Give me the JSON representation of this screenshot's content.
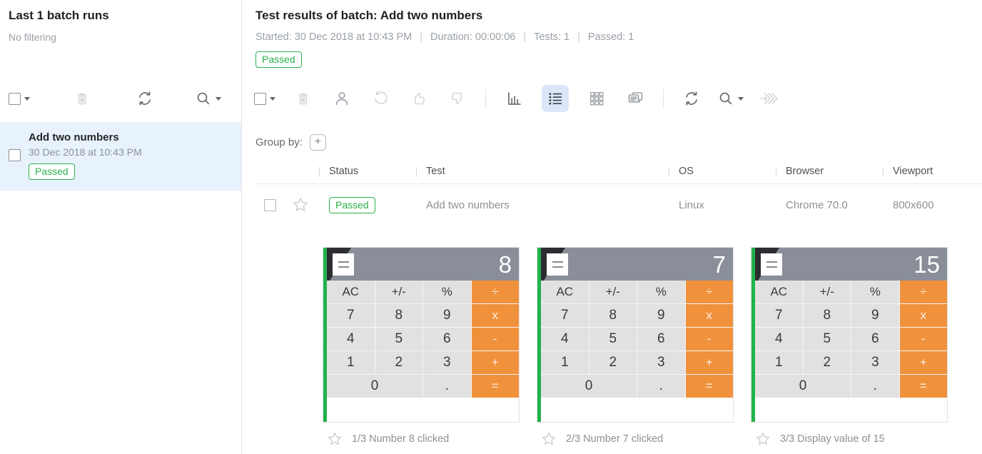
{
  "colors": {
    "passed_green": "#2bb24c",
    "selected_tool_bg": "#dbe7f8",
    "sidebar_item_bg": "#e8f2fc",
    "calc_header_gray": "#8a8e99",
    "calc_orange": "#f0913c",
    "calc_key_gray": "#e1e1e1",
    "thumbnail_green_strip": "#22b24c"
  },
  "sidebar": {
    "title": "Last 1 batch runs",
    "subtitle": "No filtering",
    "toolbar_icons": [
      "select-checkbox",
      "delete",
      "refresh",
      "search"
    ],
    "item": {
      "title": "Add two numbers",
      "date": "30 Dec 2018 at 10:43 PM",
      "status": "Passed"
    }
  },
  "header": {
    "title": "Test results of batch: Add two numbers",
    "meta": [
      "Started: 30 Dec 2018 at 10:43 PM",
      "Duration: 00:00:06",
      "Tests: 1",
      "Passed: 1"
    ],
    "meta_divider": "|",
    "status": "Passed"
  },
  "toolbar": {
    "icons": [
      "select-checkbox",
      "delete",
      "user",
      "undo",
      "thumbs-up",
      "thumbs-down",
      "bar-chart",
      "list-view",
      "grid-view",
      "comments",
      "refresh",
      "search",
      "process-forward"
    ],
    "selected_icon": "list-view"
  },
  "group_by": {
    "label": "Group by:",
    "add_button": "+"
  },
  "table": {
    "columns": [
      "Status",
      "Test",
      "OS",
      "Browser",
      "Viewport"
    ],
    "row": {
      "status": "Passed",
      "test": "Add two numbers",
      "os": "Linux",
      "browser": "Chrome 70.0",
      "viewport": "800x600"
    }
  },
  "screenshots": [
    {
      "display": "8",
      "caption": "1/3 Number 8 clicked"
    },
    {
      "display": "7",
      "caption": "2/3 Number 7 clicked"
    },
    {
      "display": "15",
      "caption": "3/3 Display value of 15"
    }
  ],
  "calculator": {
    "menu_icon": "hamburger-menu",
    "keys": [
      {
        "label": "AC",
        "type": "fn"
      },
      {
        "label": "+/-",
        "type": "fn"
      },
      {
        "label": "%",
        "type": "fn"
      },
      {
        "label": "÷",
        "type": "op"
      },
      {
        "label": "7",
        "type": "num"
      },
      {
        "label": "8",
        "type": "num"
      },
      {
        "label": "9",
        "type": "num"
      },
      {
        "label": "x",
        "type": "op"
      },
      {
        "label": "4",
        "type": "num"
      },
      {
        "label": "5",
        "type": "num"
      },
      {
        "label": "6",
        "type": "num"
      },
      {
        "label": "-",
        "type": "op"
      },
      {
        "label": "1",
        "type": "num"
      },
      {
        "label": "2",
        "type": "num"
      },
      {
        "label": "3",
        "type": "num"
      },
      {
        "label": "+",
        "type": "op"
      },
      {
        "label": "0",
        "type": "num",
        "span": 2
      },
      {
        "label": ".",
        "type": "num"
      },
      {
        "label": "=",
        "type": "op"
      }
    ]
  }
}
